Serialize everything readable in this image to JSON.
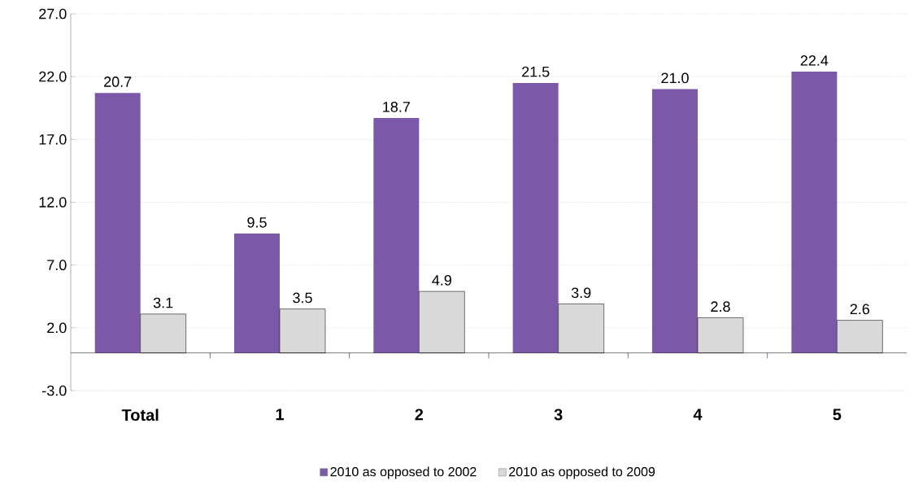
{
  "chart_data": {
    "type": "bar",
    "categories": [
      "Total",
      "1",
      "2",
      "3",
      "4",
      "5"
    ],
    "series": [
      {
        "name": "2010 as opposed to 2002",
        "color": "#7b59a8",
        "values": [
          20.7,
          9.5,
          18.7,
          21.5,
          21.0,
          22.4
        ],
        "value_labels": [
          "20.7",
          "9.5",
          "18.7",
          "21.5",
          "21.0",
          "22.4"
        ]
      },
      {
        "name": "2010 as opposed to 2009",
        "color": "#d9d9d9",
        "values": [
          3.1,
          3.5,
          4.9,
          3.9,
          2.8,
          2.6
        ],
        "value_labels": [
          "3.1",
          "3.5",
          "4.9",
          "3.9",
          "2.8",
          "2.6"
        ]
      }
    ],
    "ylim": [
      -3,
      27
    ],
    "yticks": [
      {
        "value": -3,
        "label": "-3.0"
      },
      {
        "value": 2,
        "label": "2.0"
      },
      {
        "value": 7,
        "label": "7.0"
      },
      {
        "value": 12,
        "label": "12.0"
      },
      {
        "value": 17,
        "label": "17.0"
      },
      {
        "value": 22,
        "label": "22.0"
      },
      {
        "value": 27,
        "label": "27.0"
      }
    ],
    "grid": "y",
    "legend": "bottom"
  }
}
